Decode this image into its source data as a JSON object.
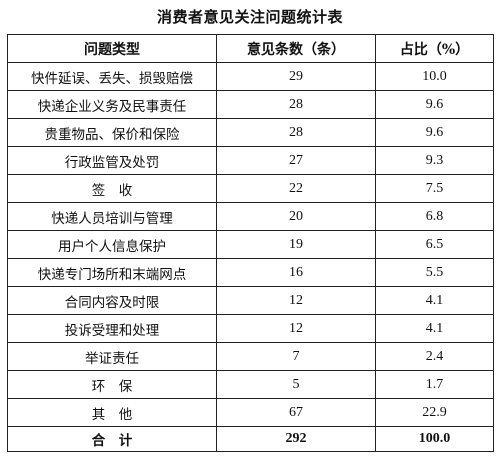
{
  "title": "消费者意见关注问题统计表",
  "headers": {
    "category": "问题类型",
    "count": "意见条数（条）",
    "ratio": "占比（%）"
  },
  "rows": [
    {
      "category": "快件延误、丢失、损毁赔偿",
      "count": "29",
      "ratio": "10.0"
    },
    {
      "category": "快递企业义务及民事责任",
      "count": "28",
      "ratio": "9.6"
    },
    {
      "category": "贵重物品、保价和保险",
      "count": "28",
      "ratio": "9.6"
    },
    {
      "category": "行政监管及处罚",
      "count": "27",
      "ratio": "9.3"
    },
    {
      "category": "签　收",
      "count": "22",
      "ratio": "7.5"
    },
    {
      "category": "快递人员培训与管理",
      "count": "20",
      "ratio": "6.8"
    },
    {
      "category": "用户个人信息保护",
      "count": "19",
      "ratio": "6.5"
    },
    {
      "category": "快递专门场所和末端网点",
      "count": "16",
      "ratio": "5.5"
    },
    {
      "category": "合同内容及时限",
      "count": "12",
      "ratio": "4.1"
    },
    {
      "category": "投诉受理和处理",
      "count": "12",
      "ratio": "4.1"
    },
    {
      "category": "举证责任",
      "count": "7",
      "ratio": "2.4"
    },
    {
      "category": "环　保",
      "count": "5",
      "ratio": "1.7"
    },
    {
      "category": "其　他",
      "count": "67",
      "ratio": "22.9"
    }
  ],
  "total": {
    "label": "合　计",
    "count": "292",
    "ratio": "100.0"
  }
}
